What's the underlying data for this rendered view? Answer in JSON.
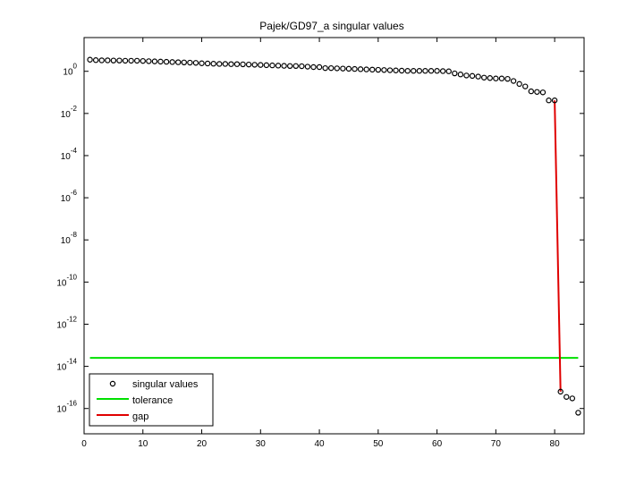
{
  "chart_data": {
    "type": "scatter",
    "title": "Pajek/GD97_a singular values",
    "xlabel": "",
    "ylabel": "",
    "xlim": [
      0,
      85
    ],
    "ylim_log10": [
      -17.2,
      1.6
    ],
    "yscale": "log",
    "grid": false,
    "legend_position": "bottom-left",
    "x_ticks": [
      "0",
      "10",
      "20",
      "30",
      "40",
      "50",
      "60",
      "70",
      "80"
    ],
    "x_tick_values": [
      0,
      10,
      20,
      30,
      40,
      50,
      60,
      70,
      80
    ],
    "y_tick_exponents": [
      0,
      -2,
      -4,
      -6,
      -8,
      -10,
      -12,
      -14,
      -16
    ],
    "y_tick_base": "10",
    "series": [
      {
        "name": "singular values",
        "marker": "circle",
        "color": "#000000",
        "x": [
          1,
          2,
          3,
          4,
          5,
          6,
          7,
          8,
          9,
          10,
          11,
          12,
          13,
          14,
          15,
          16,
          17,
          18,
          19,
          20,
          21,
          22,
          23,
          24,
          25,
          26,
          27,
          28,
          29,
          30,
          31,
          32,
          33,
          34,
          35,
          36,
          37,
          38,
          39,
          40,
          41,
          42,
          43,
          44,
          45,
          46,
          47,
          48,
          49,
          50,
          51,
          52,
          53,
          54,
          55,
          56,
          57,
          58,
          59,
          60,
          61,
          62,
          63,
          64,
          65,
          66,
          67,
          68,
          69,
          70,
          71,
          72,
          73,
          74,
          75,
          76,
          77,
          78,
          79,
          80,
          81,
          82,
          83,
          84
        ],
        "y_log10": [
          0.55,
          0.53,
          0.52,
          0.52,
          0.51,
          0.51,
          0.5,
          0.5,
          0.5,
          0.49,
          0.48,
          0.47,
          0.46,
          0.45,
          0.44,
          0.43,
          0.42,
          0.41,
          0.4,
          0.38,
          0.37,
          0.36,
          0.35,
          0.35,
          0.34,
          0.34,
          0.33,
          0.32,
          0.31,
          0.3,
          0.29,
          0.28,
          0.27,
          0.26,
          0.25,
          0.25,
          0.24,
          0.22,
          0.2,
          0.2,
          0.15,
          0.15,
          0.14,
          0.13,
          0.12,
          0.11,
          0.1,
          0.09,
          0.08,
          0.07,
          0.06,
          0.05,
          0.04,
          0.03,
          0.02,
          0.02,
          0.02,
          0.02,
          0.02,
          0.02,
          0.01,
          0.0,
          -0.1,
          -0.15,
          -0.2,
          -0.22,
          -0.25,
          -0.3,
          -0.32,
          -0.34,
          -0.34,
          -0.36,
          -0.46,
          -0.6,
          -0.72,
          -0.95,
          -0.98,
          -1.0,
          -1.38,
          -1.38,
          -15.2,
          -15.45,
          -15.52,
          -16.2
        ]
      },
      {
        "name": "tolerance",
        "color": "#00e000",
        "x": [
          1,
          84
        ],
        "y_log10": [
          -13.6,
          -13.6
        ]
      },
      {
        "name": "gap",
        "color": "#e00000",
        "x": [
          80,
          81
        ],
        "y_log10": [
          -1.38,
          -15.2
        ]
      }
    ]
  }
}
